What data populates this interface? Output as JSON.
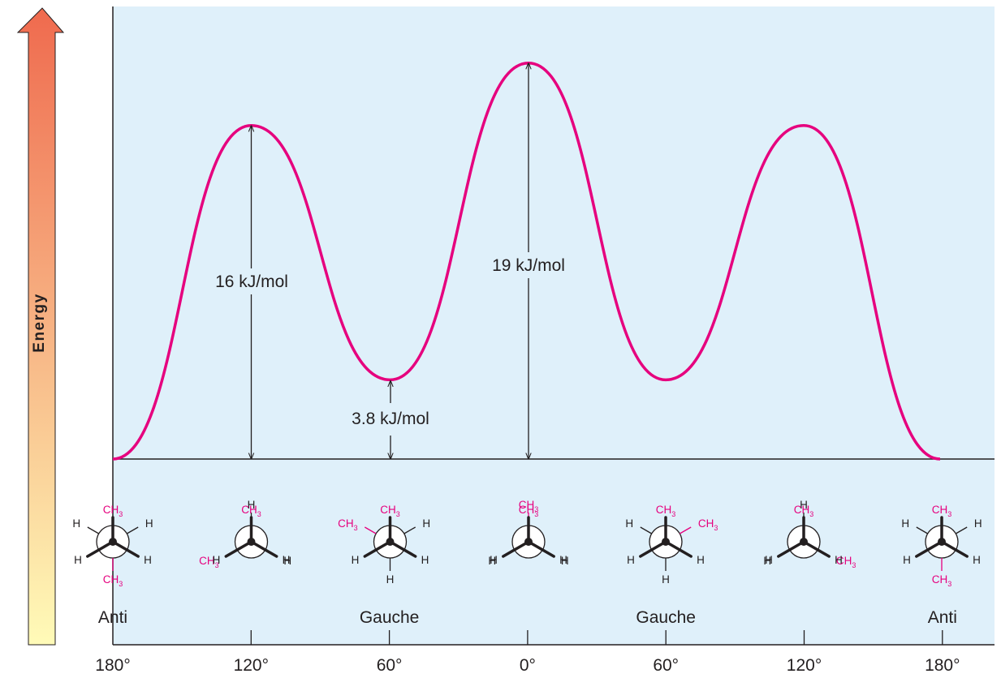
{
  "chart_data": {
    "type": "line",
    "ylabel": "Energy",
    "x_ticks": [
      "180°",
      "120°",
      "60°",
      "0°",
      "60°",
      "120°",
      "180°"
    ],
    "conformations": [
      "Anti",
      "Gauche",
      "Gauche",
      "Anti"
    ],
    "energy_points_kJmol": [
      0,
      16,
      3.8,
      19,
      3.8,
      16,
      0
    ],
    "annotations": [
      {
        "text": "16 kJ/mol",
        "at": "120°",
        "value": 16
      },
      {
        "text": "3.8 kJ/mol",
        "at": "60°",
        "value": 3.8
      },
      {
        "text": "19 kJ/mol",
        "at": "0°",
        "value": 19
      }
    ],
    "series_color": "#e6007e",
    "plot_background": "#dff0fa",
    "arrow_gradient": [
      "#ef6a4e",
      "#fffbb8"
    ]
  },
  "newman_projections": [
    {
      "dihedral": "180°",
      "front": [
        {
          "a": 0,
          "t": "CH3"
        },
        {
          "a": 240,
          "t": "H"
        },
        {
          "a": 120,
          "t": "H"
        }
      ],
      "back": [
        {
          "a": 180,
          "t": "CH3"
        },
        {
          "a": 300,
          "t": "H"
        },
        {
          "a": 60,
          "t": "H"
        }
      ]
    },
    {
      "dihedral": "120°",
      "front": [
        {
          "a": 0,
          "t": "CH3"
        },
        {
          "a": 240,
          "t": "H"
        },
        {
          "a": 120,
          "t": "H"
        }
      ],
      "back": [
        {
          "a": 0,
          "t": "H"
        },
        {
          "a": 240,
          "t": "CH3"
        },
        {
          "a": 120,
          "t": "H"
        }
      ]
    },
    {
      "dihedral": "60°",
      "front": [
        {
          "a": 0,
          "t": "CH3"
        },
        {
          "a": 240,
          "t": "H"
        },
        {
          "a": 120,
          "t": "H"
        }
      ],
      "back": [
        {
          "a": 300,
          "t": "CH3"
        },
        {
          "a": 180,
          "t": "H"
        },
        {
          "a": 60,
          "t": "H"
        }
      ]
    },
    {
      "dihedral": "0°",
      "front": [
        {
          "a": 0,
          "t": "CH3"
        },
        {
          "a": 240,
          "t": "H"
        },
        {
          "a": 120,
          "t": "H"
        }
      ],
      "back": [
        {
          "a": 0,
          "t": "CH3"
        },
        {
          "a": 240,
          "t": "H"
        },
        {
          "a": 120,
          "t": "H"
        }
      ]
    },
    {
      "dihedral": "60°",
      "front": [
        {
          "a": 0,
          "t": "CH3"
        },
        {
          "a": 240,
          "t": "H"
        },
        {
          "a": 120,
          "t": "H"
        }
      ],
      "back": [
        {
          "a": 60,
          "t": "CH3"
        },
        {
          "a": 300,
          "t": "H"
        },
        {
          "a": 180,
          "t": "H"
        }
      ]
    },
    {
      "dihedral": "120°",
      "front": [
        {
          "a": 0,
          "t": "CH3"
        },
        {
          "a": 240,
          "t": "H"
        },
        {
          "a": 120,
          "t": "H"
        }
      ],
      "back": [
        {
          "a": 0,
          "t": "H"
        },
        {
          "a": 240,
          "t": "H"
        },
        {
          "a": 120,
          "t": "CH3"
        }
      ]
    },
    {
      "dihedral": "180°",
      "front": [
        {
          "a": 0,
          "t": "CH3"
        },
        {
          "a": 240,
          "t": "H"
        },
        {
          "a": 120,
          "t": "H"
        }
      ],
      "back": [
        {
          "a": 180,
          "t": "CH3"
        },
        {
          "a": 300,
          "t": "H"
        },
        {
          "a": 60,
          "t": "H"
        }
      ]
    }
  ]
}
